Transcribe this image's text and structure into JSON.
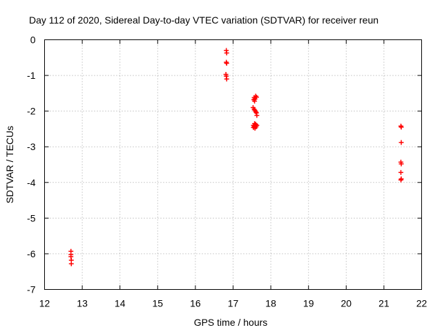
{
  "chart_data": {
    "type": "scatter",
    "title": "Day 112 of 2020, Sidereal Day-to-day VTEC variation (SDTVAR) for receiver reun",
    "xlabel": "GPS time / hours",
    "ylabel": "SDTVAR / TECUs",
    "xlim": [
      12,
      22
    ],
    "ylim": [
      -7,
      0
    ],
    "xticks": [
      "12",
      "13",
      "14",
      "15",
      "16",
      "17",
      "18",
      "19",
      "20",
      "21",
      "22"
    ],
    "yticks": [
      "0",
      "-1",
      "-2",
      "-3",
      "-4",
      "-5",
      "-6",
      "-7"
    ],
    "grid": true,
    "marker": "+",
    "color": "#ff0000",
    "series": [
      {
        "name": "SDTVAR",
        "points": [
          [
            12.7,
            -5.93
          ],
          [
            12.7,
            -6.02
          ],
          [
            12.7,
            -6.08
          ],
          [
            12.71,
            -6.18
          ],
          [
            12.71,
            -6.28
          ],
          [
            16.82,
            -0.3
          ],
          [
            16.83,
            -0.37
          ],
          [
            16.82,
            -0.63
          ],
          [
            16.83,
            -0.66
          ],
          [
            16.81,
            -0.97
          ],
          [
            16.82,
            -1.02
          ],
          [
            16.83,
            -1.1
          ],
          [
            17.6,
            -1.58
          ],
          [
            17.56,
            -1.62
          ],
          [
            17.62,
            -1.61
          ],
          [
            17.55,
            -1.68
          ],
          [
            17.58,
            -1.66
          ],
          [
            17.57,
            -1.72
          ],
          [
            17.53,
            -1.9
          ],
          [
            17.56,
            -1.95
          ],
          [
            17.58,
            -1.98
          ],
          [
            17.6,
            -2.02
          ],
          [
            17.62,
            -2.05
          ],
          [
            17.63,
            -2.12
          ],
          [
            17.57,
            -2.35
          ],
          [
            17.6,
            -2.37
          ],
          [
            17.54,
            -2.4
          ],
          [
            17.63,
            -2.4
          ],
          [
            17.56,
            -2.43
          ],
          [
            17.61,
            -2.44
          ],
          [
            17.54,
            -2.46
          ],
          [
            17.58,
            -2.48
          ],
          [
            21.45,
            -2.42
          ],
          [
            21.46,
            -2.45
          ],
          [
            21.46,
            -2.88
          ],
          [
            21.45,
            -3.43
          ],
          [
            21.46,
            -3.48
          ],
          [
            21.45,
            -3.72
          ],
          [
            21.46,
            -3.9
          ],
          [
            21.45,
            -3.93
          ]
        ]
      }
    ]
  }
}
